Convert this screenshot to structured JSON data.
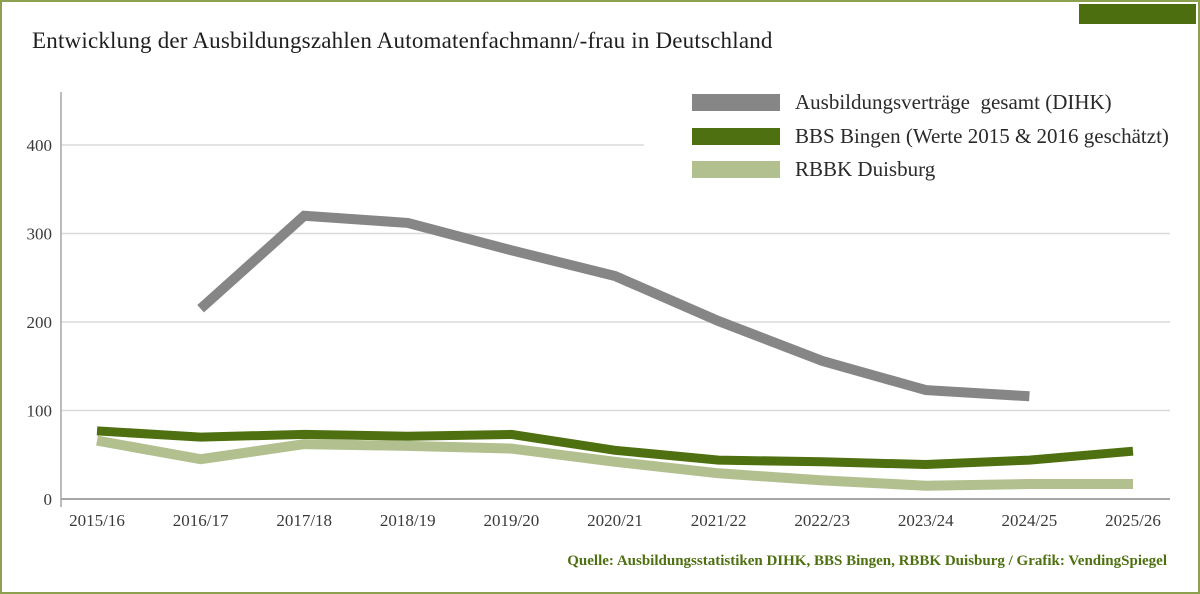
{
  "header": {
    "title": "Entwicklung der Ausbildungszahlen Automatenfachmann/-frau in Deutschland"
  },
  "legend": {
    "items": [
      {
        "label": "Ausbildungsverträge  gesamt (DIHK)",
        "color": "#868686"
      },
      {
        "label": "BBS Bingen (Werte 2015 & 2016 geschätzt)",
        "color": "#4f7010"
      },
      {
        "label": "RBBK Duisburg",
        "color": "#b2bf8e"
      }
    ]
  },
  "chart_data": {
    "type": "line",
    "title": "Entwicklung der Ausbildungszahlen Automatenfachmann/-frau in Deutschland",
    "categories": [
      "2015/16",
      "2016/17",
      "2017/18",
      "2018/19",
      "2019/20",
      "2020/21",
      "2021/22",
      "2022/23",
      "2023/24",
      "2024/25",
      "2025/26"
    ],
    "series": [
      {
        "name": "RBBK Duisburg",
        "color": "#b2bf8e",
        "stroke_width": 10,
        "values": [
          66,
          45,
          62,
          60,
          57,
          42,
          29,
          21,
          15,
          17,
          17
        ]
      },
      {
        "name": "BBS Bingen (Werte 2015 & 2016 geschätzt)",
        "color": "#4f7010",
        "stroke_width": 9,
        "values": [
          77,
          70,
          73,
          71,
          73,
          55,
          44,
          42,
          39,
          44,
          54
        ]
      },
      {
        "name": "Ausbildungsverträge gesamt (DIHK)",
        "color": "#868686",
        "stroke_width": 10,
        "values": [
          null,
          215,
          320,
          312,
          281,
          252,
          201,
          156,
          123,
          116,
          null
        ]
      }
    ],
    "xlabel": "",
    "ylabel": "",
    "ylim": [
      0,
      450
    ],
    "yticks": [
      0,
      100,
      200,
      300,
      400
    ],
    "grid": true,
    "legend_position": "top-right"
  },
  "footer": {
    "source": "Quelle: Ausbildungsstatistiken DIHK, BBS Bingen, RBBK Duisburg / Grafik: VendingSpiegel"
  },
  "decorations": {
    "frame_border_color": "#8ca04f",
    "corner_block_color": "#4d6e0f",
    "gridline_color": "#dadada",
    "axis_color": "#a6a6a6"
  }
}
